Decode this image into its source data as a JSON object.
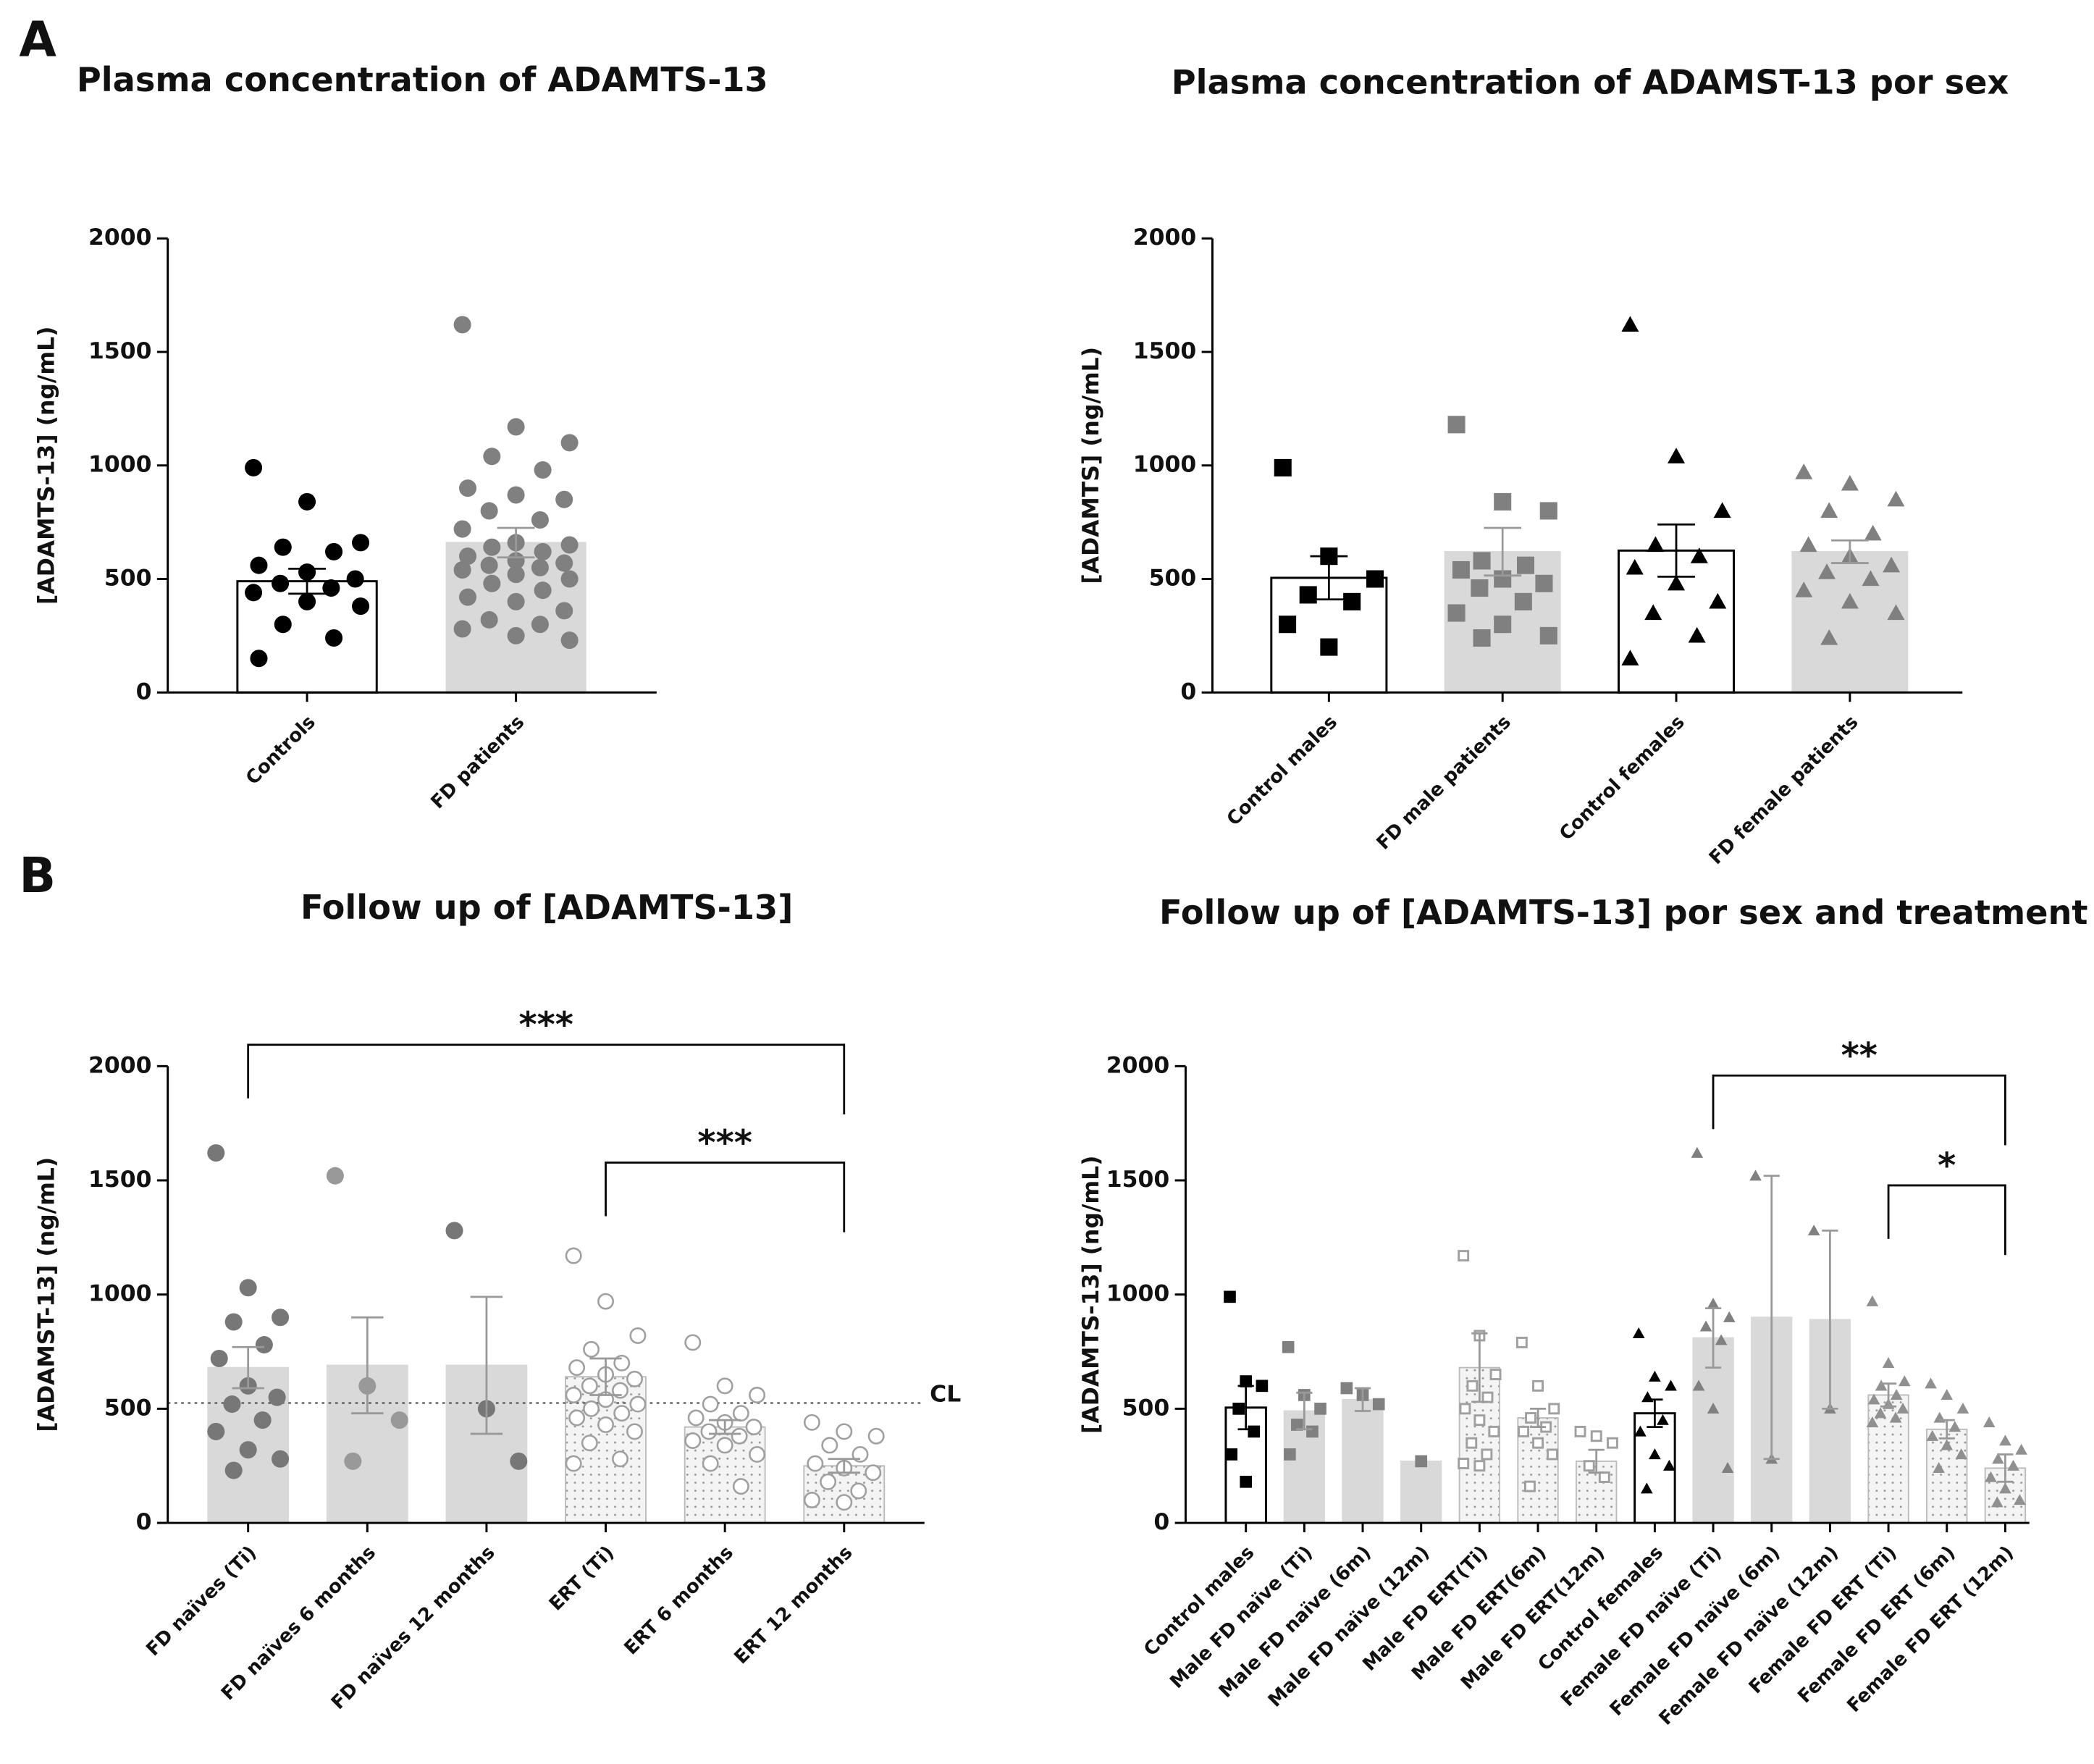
{
  "panels": [
    "A",
    "B"
  ],
  "chart_data": [
    {
      "type": "bar",
      "title": "Plasma concentration of ADAMTS-13",
      "y_label": "[ADAMTS-13] (ng/mL)",
      "categories": [
        "Controls",
        "FD patients"
      ],
      "values": [
        490,
        660
      ],
      "errors": [
        55,
        65
      ],
      "points": [
        [
          990,
          840,
          660,
          640,
          620,
          560,
          530,
          500,
          480,
          460,
          440,
          400,
          380,
          300,
          240,
          150
        ],
        [
          1620,
          1170,
          1100,
          1040,
          980,
          900,
          870,
          850,
          800,
          760,
          720,
          660,
          650,
          640,
          620,
          600,
          580,
          570,
          560,
          550,
          540,
          520,
          500,
          480,
          450,
          420,
          400,
          360,
          320,
          300,
          280,
          250,
          230
        ]
      ],
      "bar_style": [
        "open",
        "filled"
      ],
      "point_colors": [
        "#000000",
        "#808080"
      ],
      "markers": [
        "circle",
        "circle"
      ],
      "ylim": [
        0,
        2000
      ],
      "yticks": [
        0,
        500,
        1000,
        1500,
        2000
      ]
    },
    {
      "type": "bar",
      "title": "Plasma concentration of ADAMST-13 por sex",
      "y_label": "[ADAMTS] (ng/mL)",
      "categories": [
        "Control males",
        "FD male patients",
        "Control females",
        "FD female patients"
      ],
      "values": [
        505,
        620,
        625,
        620
      ],
      "errors": [
        95,
        105,
        115,
        50
      ],
      "points": [
        [
          990,
          600,
          500,
          430,
          400,
          300,
          200
        ],
        [
          1180,
          840,
          800,
          580,
          560,
          540,
          500,
          480,
          460,
          400,
          350,
          300,
          250,
          240
        ],
        [
          1620,
          1040,
          800,
          650,
          600,
          550,
          480,
          400,
          350,
          250,
          150
        ],
        [
          970,
          920,
          850,
          800,
          700,
          650,
          600,
          560,
          530,
          500,
          450,
          400,
          350,
          240
        ]
      ],
      "bar_style": [
        "open",
        "filled",
        "open",
        "filled"
      ],
      "point_colors": [
        "#000000",
        "#808080",
        "#000000",
        "#808080"
      ],
      "markers": [
        "square",
        "square",
        "triangle",
        "triangle"
      ],
      "ylim": [
        0,
        2000
      ],
      "yticks": [
        0,
        500,
        1000,
        1500,
        2000
      ]
    },
    {
      "type": "bar",
      "title": "Follow up of [ADAMTS-13]",
      "y_label": "[ADAMST-13] (ng/mL)",
      "categories": [
        "FD naïves (Ti)",
        "FD naïves 6 months",
        "FD naïves 12 months",
        "ERT (Ti)",
        "ERT 6 months",
        "ERT 12 months"
      ],
      "values": [
        680,
        690,
        690,
        640,
        420,
        250
      ],
      "errors": [
        90,
        210,
        300,
        80,
        30,
        30
      ],
      "points": [
        [
          1620,
          1030,
          900,
          880,
          780,
          720,
          600,
          550,
          520,
          450,
          400,
          320,
          280,
          230
        ],
        [
          1520,
          600,
          450,
          270
        ],
        [
          1280,
          500,
          270
        ],
        [
          1170,
          970,
          820,
          760,
          700,
          680,
          650,
          630,
          600,
          580,
          560,
          540,
          520,
          500,
          480,
          460,
          430,
          400,
          350,
          280,
          260
        ],
        [
          790,
          600,
          560,
          520,
          480,
          460,
          440,
          420,
          400,
          380,
          360,
          340,
          300,
          260,
          160
        ],
        [
          440,
          400,
          380,
          340,
          300,
          260,
          240,
          220,
          180,
          140,
          100,
          90
        ]
      ],
      "bar_style": [
        "filled",
        "filled",
        "filled",
        "dotted",
        "dotted",
        "dotted"
      ],
      "point_colors": [
        "#777777",
        "#999999",
        "#777777",
        "#a0a0a0",
        "#a0a0a0",
        "#a0a0a0"
      ],
      "markers": [
        "circle",
        "circle",
        "circle",
        "open-circle",
        "open-circle",
        "open-circle"
      ],
      "reference_line": {
        "value": 525,
        "label": "CL"
      },
      "annotations": [
        "***",
        "***"
      ],
      "ylim": [
        0,
        2000
      ],
      "yticks": [
        0,
        500,
        1000,
        1500,
        2000
      ]
    },
    {
      "type": "bar",
      "title": "Follow up of [ADAMTS-13] por sex and treatment",
      "y_label": "[ADAMTS-13] (ng/mL)",
      "categories": [
        "Control males",
        "Male FD naïve (Ti)",
        "Male FD naïve (6m)",
        "Male FD naïve (12m)",
        "Male FD ERT(Ti)",
        "Male FD ERT(6m)",
        "Male FD ERT(12m)",
        "Control females",
        "Female FD naïve (Ti)",
        "Female FD naïve (6m)",
        "Female FD naïve (12m)",
        "Female FD ERT (Ti)",
        "Female FD ERT (6m)",
        "Female FD ERT (12m)"
      ],
      "values": [
        505,
        490,
        540,
        270,
        680,
        460,
        270,
        480,
        810,
        900,
        890,
        560,
        410,
        240
      ],
      "errors": [
        95,
        80,
        50,
        null,
        150,
        40,
        50,
        60,
        130,
        620,
        390,
        50,
        40,
        60
      ],
      "points": [
        [
          990,
          620,
          600,
          500,
          400,
          300,
          180
        ],
        [
          770,
          560,
          500,
          430,
          400,
          300
        ],
        [
          590,
          560,
          520
        ],
        [
          270
        ],
        [
          1170,
          820,
          650,
          600,
          550,
          500,
          450,
          400,
          350,
          300,
          260,
          250
        ],
        [
          790,
          600,
          500,
          460,
          420,
          400,
          350,
          300,
          160
        ],
        [
          400,
          380,
          350,
          250,
          200
        ],
        [
          830,
          640,
          600,
          550,
          450,
          400,
          300,
          250,
          150
        ],
        [
          1620,
          960,
          900,
          860,
          800,
          600,
          500,
          240
        ],
        [
          1520,
          280
        ],
        [
          1280,
          500
        ],
        [
          970,
          700,
          620,
          600,
          560,
          540,
          520,
          500,
          480,
          460,
          440
        ],
        [
          610,
          560,
          500,
          460,
          420,
          380,
          340,
          300,
          240
        ],
        [
          440,
          360,
          320,
          280,
          250,
          200,
          150,
          100,
          90
        ]
      ],
      "bar_style": [
        "open",
        "filled",
        "filled",
        "filled",
        "dotted",
        "dotted",
        "dotted",
        "open",
        "filled",
        "filled",
        "filled",
        "dotted",
        "dotted",
        "dotted"
      ],
      "point_colors": [
        "#000000",
        "#808080",
        "#808080",
        "#808080",
        "#a0a0a0",
        "#a0a0a0",
        "#a0a0a0",
        "#000000",
        "#808080",
        "#808080",
        "#808080",
        "#909090",
        "#909090",
        "#909090"
      ],
      "markers": [
        "square",
        "square",
        "square",
        "square",
        "open-square",
        "open-square",
        "open-square",
        "triangle",
        "triangle",
        "triangle",
        "triangle",
        "triangle",
        "triangle",
        "triangle"
      ],
      "annotations": [
        "**",
        "*"
      ],
      "ylim": [
        0,
        2000
      ],
      "yticks": [
        0,
        500,
        1000,
        1500,
        2000
      ]
    }
  ]
}
